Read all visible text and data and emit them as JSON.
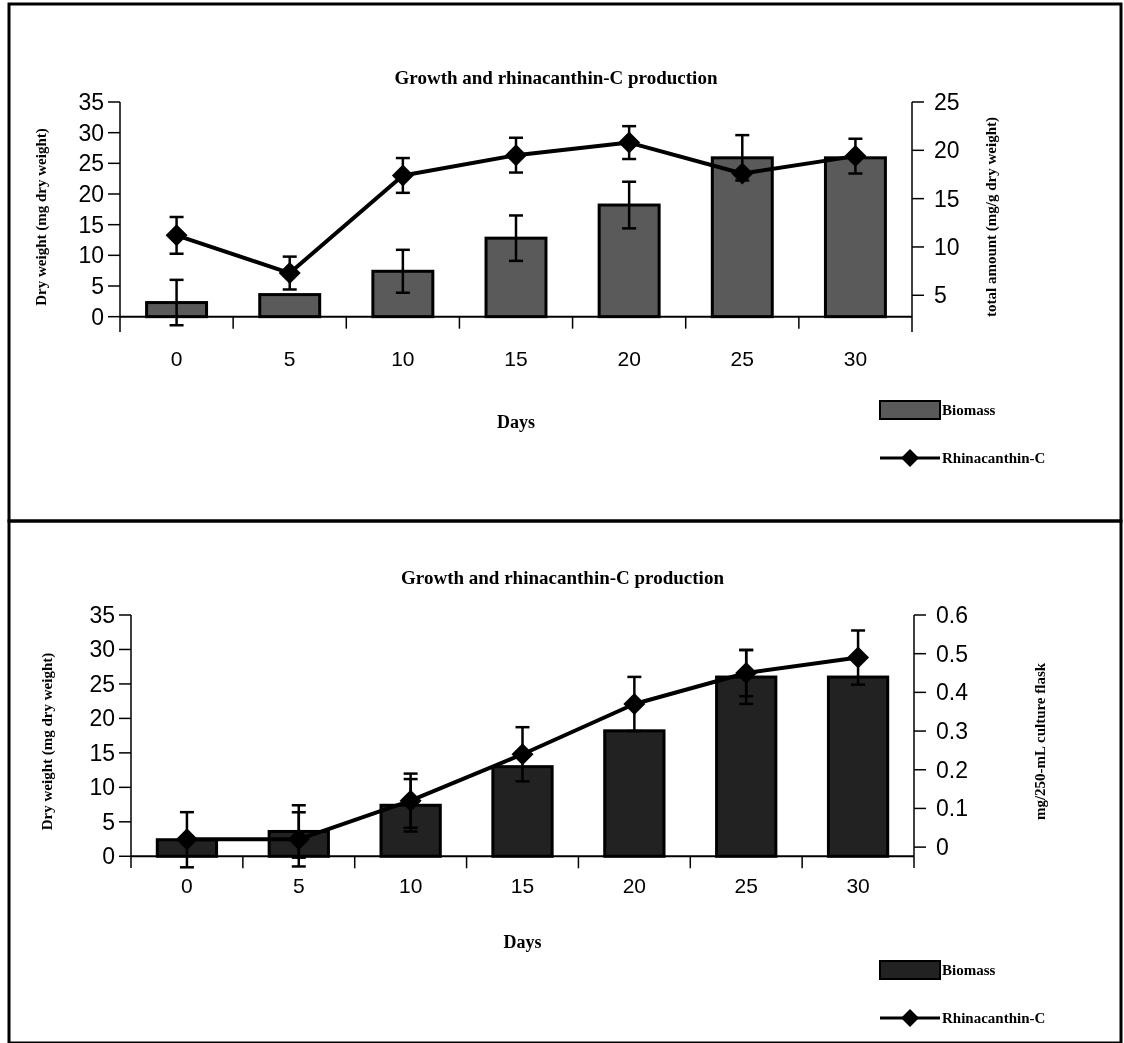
{
  "chart_data": [
    {
      "type": "bar",
      "title": "Growth and rhinacanthin-C production",
      "xlabel": "Days",
      "ylabel": "Dry weight (mg dry weight)",
      "y2label": "total amount (mg/g dry weight)",
      "categories": [
        "0",
        "5",
        "10",
        "15",
        "20",
        "25",
        "30"
      ],
      "ylim": [
        -2.5,
        35
      ],
      "yticks": [
        0,
        5,
        10,
        15,
        20,
        25,
        30,
        35
      ],
      "y2lim": [
        1.2,
        25
      ],
      "y2ticks": [
        5,
        10,
        15,
        20,
        25
      ],
      "legend": "bottom right",
      "marker": "diamond",
      "series": [
        {
          "name": "Biomass",
          "color": "#5a5a5a",
          "values": [
            2.3,
            3.6,
            7.4,
            12.8,
            18.2,
            25.9,
            25.9
          ],
          "errors": [
            3.7,
            null,
            3.5,
            3.7,
            3.8,
            3.7,
            null
          ]
        },
        {
          "name": "Rhinacanthin-C",
          "type": "line",
          "axis": "y2",
          "color": "#000000",
          "values": [
            11.2,
            7.3,
            17.4,
            19.5,
            20.8,
            17.6,
            19.4
          ],
          "errors": [
            1.9,
            1.7,
            1.8,
            1.8,
            1.7,
            null,
            1.8
          ]
        }
      ]
    },
    {
      "type": "bar",
      "title": "Growth and rhinacanthin-C production",
      "xlabel": "Days",
      "ylabel": "Dry weight (mg dry weight)",
      "y2label": "mg/250-mL culture flask",
      "categories": [
        "0",
        "5",
        "10",
        "15",
        "20",
        "25",
        "30"
      ],
      "ylim": [
        -1.7,
        35
      ],
      "yticks": [
        0,
        5,
        10,
        15,
        20,
        25,
        30,
        35
      ],
      "y2lim": [
        -0.054,
        0.6
      ],
      "y2ticks": [
        0,
        0.1,
        0.2,
        0.3,
        0.4,
        0.5,
        0.6
      ],
      "legend": "bottom right",
      "marker": "diamond",
      "series": [
        {
          "name": "Biomass",
          "color": "#222222",
          "values": [
            2.4,
            3.6,
            7.4,
            13.0,
            18.2,
            26.0,
            26.0
          ],
          "errors": [
            4.0,
            3.8,
            3.8,
            null,
            null,
            3.9,
            null
          ]
        },
        {
          "name": "Rhinacanthin-C",
          "type": "line",
          "axis": "y2",
          "color": "#000000",
          "values": [
            0.02,
            0.02,
            0.12,
            0.24,
            0.37,
            0.45,
            0.49
          ],
          "errors": [
            null,
            0.07,
            0.07,
            0.07,
            0.07,
            0.06,
            0.07
          ]
        }
      ]
    }
  ]
}
